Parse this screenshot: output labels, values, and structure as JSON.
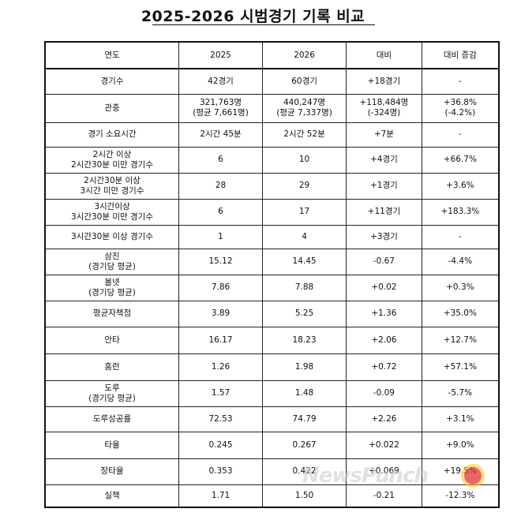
{
  "title": "2025-2026 시범경기 기록 비교",
  "table": {
    "headers": [
      "연도",
      "2025",
      "2026",
      "대비",
      "대비 증감"
    ],
    "rows": [
      {
        "h": 32,
        "cells": [
          [
            "경기수"
          ],
          [
            "42경기"
          ],
          [
            "60경기"
          ],
          [
            "+18경기"
          ],
          [
            "-"
          ]
        ]
      },
      {
        "h": 36,
        "cells": [
          [
            "관중"
          ],
          [
            "321,763명",
            "(평균 7,661명)"
          ],
          [
            "440,247명",
            "(평균 7,337명)"
          ],
          [
            "+118,484명",
            "(-324명)"
          ],
          [
            "+36.8%",
            "(-4.2%)"
          ]
        ]
      },
      {
        "h": 31,
        "cells": [
          [
            "경기 소요시간"
          ],
          [
            "2시간 45분"
          ],
          [
            "2시간 52분"
          ],
          [
            "+7분"
          ],
          [
            "-"
          ]
        ]
      },
      {
        "h": 33,
        "cells": [
          [
            "2시간 이상",
            "2시간30분 미만 경기수"
          ],
          [
            "6"
          ],
          [
            "10"
          ],
          [
            "+4경기"
          ],
          [
            "+66.7%"
          ]
        ]
      },
      {
        "h": 33,
        "cells": [
          [
            "2시간30분 이상",
            "3시간 미만 경기수"
          ],
          [
            "28"
          ],
          [
            "29"
          ],
          [
            "+1경기"
          ],
          [
            "+3.6%"
          ]
        ]
      },
      {
        "h": 33,
        "cells": [
          [
            "3시간이상",
            "3시간30분 미만 경기수"
          ],
          [
            "6"
          ],
          [
            "17"
          ],
          [
            "+11경기"
          ],
          [
            "+183.3%"
          ]
        ]
      },
      {
        "h": 30,
        "cells": [
          [
            "3시간30분 이상 경기수"
          ],
          [
            "1"
          ],
          [
            "4"
          ],
          [
            "+3경기"
          ],
          [
            "-"
          ]
        ]
      },
      {
        "h": 33,
        "cells": [
          [
            "삼진",
            "(경기당 평균)"
          ],
          [
            "15.12"
          ],
          [
            "14.45"
          ],
          [
            "-0.67"
          ],
          [
            "-4.4%"
          ]
        ]
      },
      {
        "h": 33,
        "cells": [
          [
            "볼넷",
            "(경기당 평균)"
          ],
          [
            "7.86"
          ],
          [
            "7.88"
          ],
          [
            "+0.02"
          ],
          [
            "+0.3%"
          ]
        ]
      },
      {
        "h": 33,
        "cells": [
          [
            "평균자책점"
          ],
          [
            "3.89"
          ],
          [
            "5.25"
          ],
          [
            "+1.36"
          ],
          [
            "+35.0%"
          ]
        ]
      },
      {
        "h": 34,
        "cells": [
          [
            "안타"
          ],
          [
            "16.17"
          ],
          [
            "18.23"
          ],
          [
            "+2.06"
          ],
          [
            "+12.7%"
          ]
        ]
      },
      {
        "h": 34,
        "cells": [
          [
            "홈런"
          ],
          [
            "1.26"
          ],
          [
            "1.98"
          ],
          [
            "+0.72"
          ],
          [
            "+57.1%"
          ]
        ]
      },
      {
        "h": 33,
        "cells": [
          [
            "도루",
            "(경기당 평균)"
          ],
          [
            "1.57"
          ],
          [
            "1.48"
          ],
          [
            "-0.09"
          ],
          [
            "-5.7%"
          ]
        ]
      },
      {
        "h": 32,
        "cells": [
          [
            "도루성공률"
          ],
          [
            "72.53"
          ],
          [
            "74.79"
          ],
          [
            "+2.26"
          ],
          [
            "+3.1%"
          ]
        ]
      },
      {
        "h": 34,
        "cells": [
          [
            "타율"
          ],
          [
            "0.245"
          ],
          [
            "0.267"
          ],
          [
            "+0.022"
          ],
          [
            "+9.0%"
          ]
        ]
      },
      {
        "h": 33,
        "cells": [
          [
            "장타율"
          ],
          [
            "0.353"
          ],
          [
            "0.422"
          ],
          [
            "+0.069"
          ],
          [
            "+19.5%"
          ]
        ]
      },
      {
        "h": 29,
        "cells": [
          [
            "실책"
          ],
          [
            "1.71"
          ],
          [
            "1.50"
          ],
          [
            "-0.21"
          ],
          [
            "-12.3%"
          ]
        ]
      }
    ]
  },
  "watermark": {
    "text": "NewsPunch"
  }
}
